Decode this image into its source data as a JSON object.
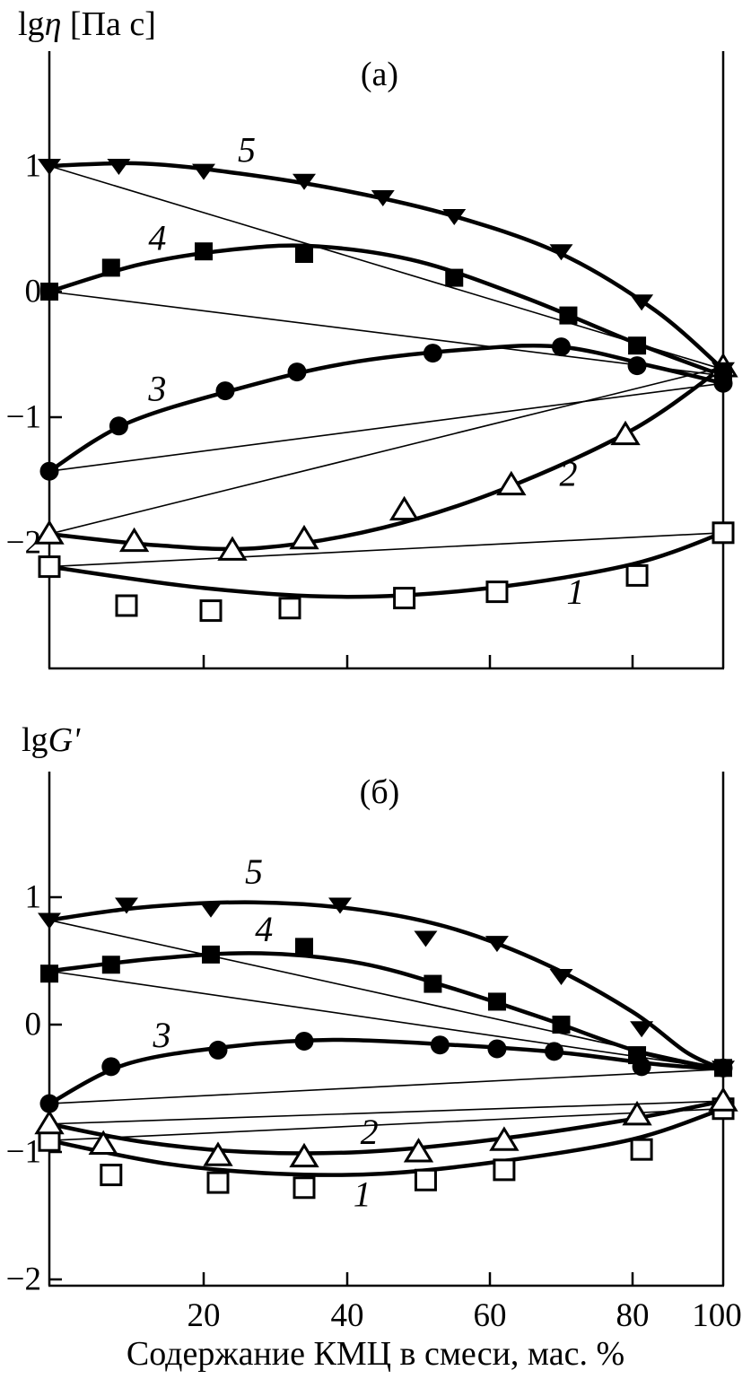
{
  "colors": {
    "ink": "#000000",
    "background": "#ffffff"
  },
  "labels": {
    "ylabel_a_prefix": "lg",
    "ylabel_a_symbol": "η",
    "ylabel_a_suffix": " [Па с]",
    "ylabel_b_prefix": "lg",
    "ylabel_b_symbol": "G'",
    "panel_a": "(а)",
    "panel_b": "(б)",
    "xlabel": "Содержание КМЦ в смеси, мас. %"
  },
  "chart_data": [
    {
      "panel": "a",
      "type": "line",
      "title": "(а)",
      "ylabel": "lg η [Па с]",
      "xlabel": "Содержание КМЦ в смеси, мас. %",
      "xlim": [
        0,
        100
      ],
      "ylim": [
        -3.0,
        1.9
      ],
      "xticks": [
        20,
        40,
        60,
        80,
        100
      ],
      "yticks": [
        1,
        0,
        -1,
        -2
      ],
      "legend": "curves numbered 1-5, each with thin additivity line between endpoints",
      "series": [
        {
          "name": "1",
          "marker": "open-square",
          "label_pos": [
            72,
            -2.39
          ],
          "points": [
            [
              0,
              -2.19
            ],
            [
              10,
              -2.5
            ],
            [
              21,
              -2.54
            ],
            [
              32,
              -2.52
            ],
            [
              48,
              -2.44
            ],
            [
              61,
              -2.39
            ],
            [
              81,
              -2.26
            ],
            [
              100,
              -1.92
            ]
          ],
          "curve": [
            [
              0,
              -2.19
            ],
            [
              20,
              -2.36
            ],
            [
              40,
              -2.43
            ],
            [
              60,
              -2.36
            ],
            [
              80,
              -2.17
            ],
            [
              100,
              -1.92
            ]
          ]
        },
        {
          "name": "2",
          "marker": "open-triangle",
          "label_pos": [
            71,
            -1.45
          ],
          "points": [
            [
              0,
              -1.93
            ],
            [
              11,
              -1.99
            ],
            [
              24,
              -2.06
            ],
            [
              34,
              -1.97
            ],
            [
              48,
              -1.74
            ],
            [
              63,
              -1.54
            ],
            [
              79,
              -1.14
            ],
            [
              100,
              -0.6
            ]
          ],
          "curve": [
            [
              0,
              -1.93
            ],
            [
              14,
              -2.02
            ],
            [
              28,
              -2.04
            ],
            [
              45,
              -1.88
            ],
            [
              62,
              -1.57
            ],
            [
              80,
              -1.1
            ],
            [
              100,
              -0.6
            ]
          ]
        },
        {
          "name": "3",
          "marker": "filled-circle",
          "label_pos": [
            14,
            -0.77
          ],
          "points": [
            [
              0,
              -1.43
            ],
            [
              9,
              -1.07
            ],
            [
              23,
              -0.79
            ],
            [
              33,
              -0.64
            ],
            [
              52,
              -0.49
            ],
            [
              70,
              -0.44
            ],
            [
              81,
              -0.59
            ],
            [
              100,
              -0.73
            ]
          ],
          "curve": [
            [
              0,
              -1.43
            ],
            [
              10,
              -1.05
            ],
            [
              25,
              -0.77
            ],
            [
              40,
              -0.57
            ],
            [
              57,
              -0.46
            ],
            [
              70,
              -0.44
            ],
            [
              85,
              -0.6
            ],
            [
              100,
              -0.73
            ]
          ]
        },
        {
          "name": "4",
          "marker": "filled-square",
          "label_pos": [
            14,
            0.43
          ],
          "points": [
            [
              0,
              0.0
            ],
            [
              8,
              0.19
            ],
            [
              20,
              0.32
            ],
            [
              34,
              0.3
            ],
            [
              55,
              0.11
            ],
            [
              71,
              -0.19
            ],
            [
              81,
              -0.43
            ],
            [
              100,
              -0.67
            ]
          ],
          "curve": [
            [
              0,
              0.0
            ],
            [
              12,
              0.22
            ],
            [
              25,
              0.34
            ],
            [
              36,
              0.36
            ],
            [
              50,
              0.24
            ],
            [
              65,
              -0.05
            ],
            [
              80,
              -0.4
            ],
            [
              100,
              -0.67
            ]
          ]
        },
        {
          "name": "5",
          "marker": "filled-triangle-down",
          "label_pos": [
            26,
            1.13
          ],
          "points": [
            [
              0,
              1.0
            ],
            [
              9,
              1.0
            ],
            [
              20,
              0.96
            ],
            [
              34,
              0.88
            ],
            [
              45,
              0.75
            ],
            [
              55,
              0.6
            ],
            [
              70,
              0.32
            ],
            [
              82,
              -0.08
            ],
            [
              100,
              -0.62
            ]
          ],
          "curve": [
            [
              0,
              1.0
            ],
            [
              12,
              1.02
            ],
            [
              25,
              0.94
            ],
            [
              40,
              0.8
            ],
            [
              55,
              0.6
            ],
            [
              70,
              0.3
            ],
            [
              85,
              -0.15
            ],
            [
              100,
              -0.62
            ]
          ]
        }
      ]
    },
    {
      "panel": "b",
      "type": "line",
      "title": "(б)",
      "ylabel": "lg G'",
      "xlabel": "Содержание КМЦ в смеси, мас. %",
      "xlim": [
        0,
        100
      ],
      "ylim": [
        -2.05,
        2.0
      ],
      "xticks": [
        20,
        40,
        60,
        80,
        100
      ],
      "yticks": [
        1,
        0,
        -1,
        -2
      ],
      "legend": "curves numbered 1-5, each with thin additivity line between endpoints",
      "series": [
        {
          "name": "1",
          "marker": "open-square",
          "label_pos": [
            42.1,
            -1.33
          ],
          "points": [
            [
              0,
              -0.91
            ],
            [
              8,
              -1.18
            ],
            [
              22,
              -1.24
            ],
            [
              34,
              -1.28
            ],
            [
              51,
              -1.22
            ],
            [
              62,
              -1.14
            ],
            [
              82,
              -0.98
            ],
            [
              100,
              -0.66
            ]
          ],
          "curve": [
            [
              0,
              -0.91
            ],
            [
              15,
              -1.09
            ],
            [
              30,
              -1.17
            ],
            [
              45,
              -1.17
            ],
            [
              62,
              -1.07
            ],
            [
              80,
              -0.9
            ],
            [
              100,
              -0.66
            ]
          ]
        },
        {
          "name": "2",
          "marker": "open-triangle",
          "label_pos": [
            43.1,
            -0.84
          ],
          "points": [
            [
              0,
              -0.78
            ],
            [
              7,
              -0.94
            ],
            [
              22,
              -1.03
            ],
            [
              34,
              -1.04
            ],
            [
              50,
              -1.0
            ],
            [
              62,
              -0.91
            ],
            [
              81,
              -0.71
            ],
            [
              100,
              -0.6
            ]
          ],
          "curve": [
            [
              0,
              -0.78
            ],
            [
              12,
              -0.92
            ],
            [
              26,
              -1.0
            ],
            [
              42,
              -1.0
            ],
            [
              58,
              -0.92
            ],
            [
              78,
              -0.76
            ],
            [
              100,
              -0.6
            ]
          ]
        },
        {
          "name": "3",
          "marker": "filled-circle",
          "label_pos": [
            14.6,
            -0.08
          ],
          "points": [
            [
              0,
              -0.62
            ],
            [
              8,
              -0.33
            ],
            [
              22,
              -0.2
            ],
            [
              34,
              -0.13
            ],
            [
              53,
              -0.16
            ],
            [
              61,
              -0.19
            ],
            [
              69,
              -0.21
            ],
            [
              82,
              -0.33
            ],
            [
              100,
              -0.34
            ]
          ],
          "curve": [
            [
              0,
              -0.62
            ],
            [
              10,
              -0.31
            ],
            [
              24,
              -0.17
            ],
            [
              38,
              -0.12
            ],
            [
              55,
              -0.16
            ],
            [
              70,
              -0.22
            ],
            [
              85,
              -0.31
            ],
            [
              100,
              -0.35
            ]
          ]
        },
        {
          "name": "4",
          "marker": "filled-square",
          "label_pos": [
            28.4,
            0.75
          ],
          "points": [
            [
              0,
              0.4
            ],
            [
              8,
              0.47
            ],
            [
              21,
              0.55
            ],
            [
              34,
              0.61
            ],
            [
              52,
              0.32
            ],
            [
              61,
              0.18
            ],
            [
              70,
              0.0
            ],
            [
              81,
              -0.24
            ],
            [
              100,
              -0.34
            ]
          ],
          "curve": [
            [
              0,
              0.42
            ],
            [
              14,
              0.52
            ],
            [
              28,
              0.56
            ],
            [
              42,
              0.48
            ],
            [
              55,
              0.28
            ],
            [
              68,
              0.04
            ],
            [
              82,
              -0.22
            ],
            [
              100,
              -0.35
            ]
          ]
        },
        {
          "name": "5",
          "marker": "filled-triangle-down",
          "label_pos": [
            27,
            1.2
          ],
          "points": [
            [
              0,
              0.82
            ],
            [
              10,
              0.94
            ],
            [
              21,
              0.91
            ],
            [
              39,
              0.94
            ],
            [
              51,
              0.68
            ],
            [
              61,
              0.64
            ],
            [
              70,
              0.38
            ],
            [
              82,
              -0.03
            ],
            [
              100,
              -0.34
            ]
          ],
          "curve": [
            [
              0,
              0.82
            ],
            [
              12,
              0.92
            ],
            [
              27,
              0.96
            ],
            [
              42,
              0.9
            ],
            [
              55,
              0.75
            ],
            [
              68,
              0.47
            ],
            [
              80,
              0.1
            ],
            [
              92,
              -0.22
            ],
            [
              100,
              -0.35
            ]
          ]
        }
      ]
    }
  ]
}
